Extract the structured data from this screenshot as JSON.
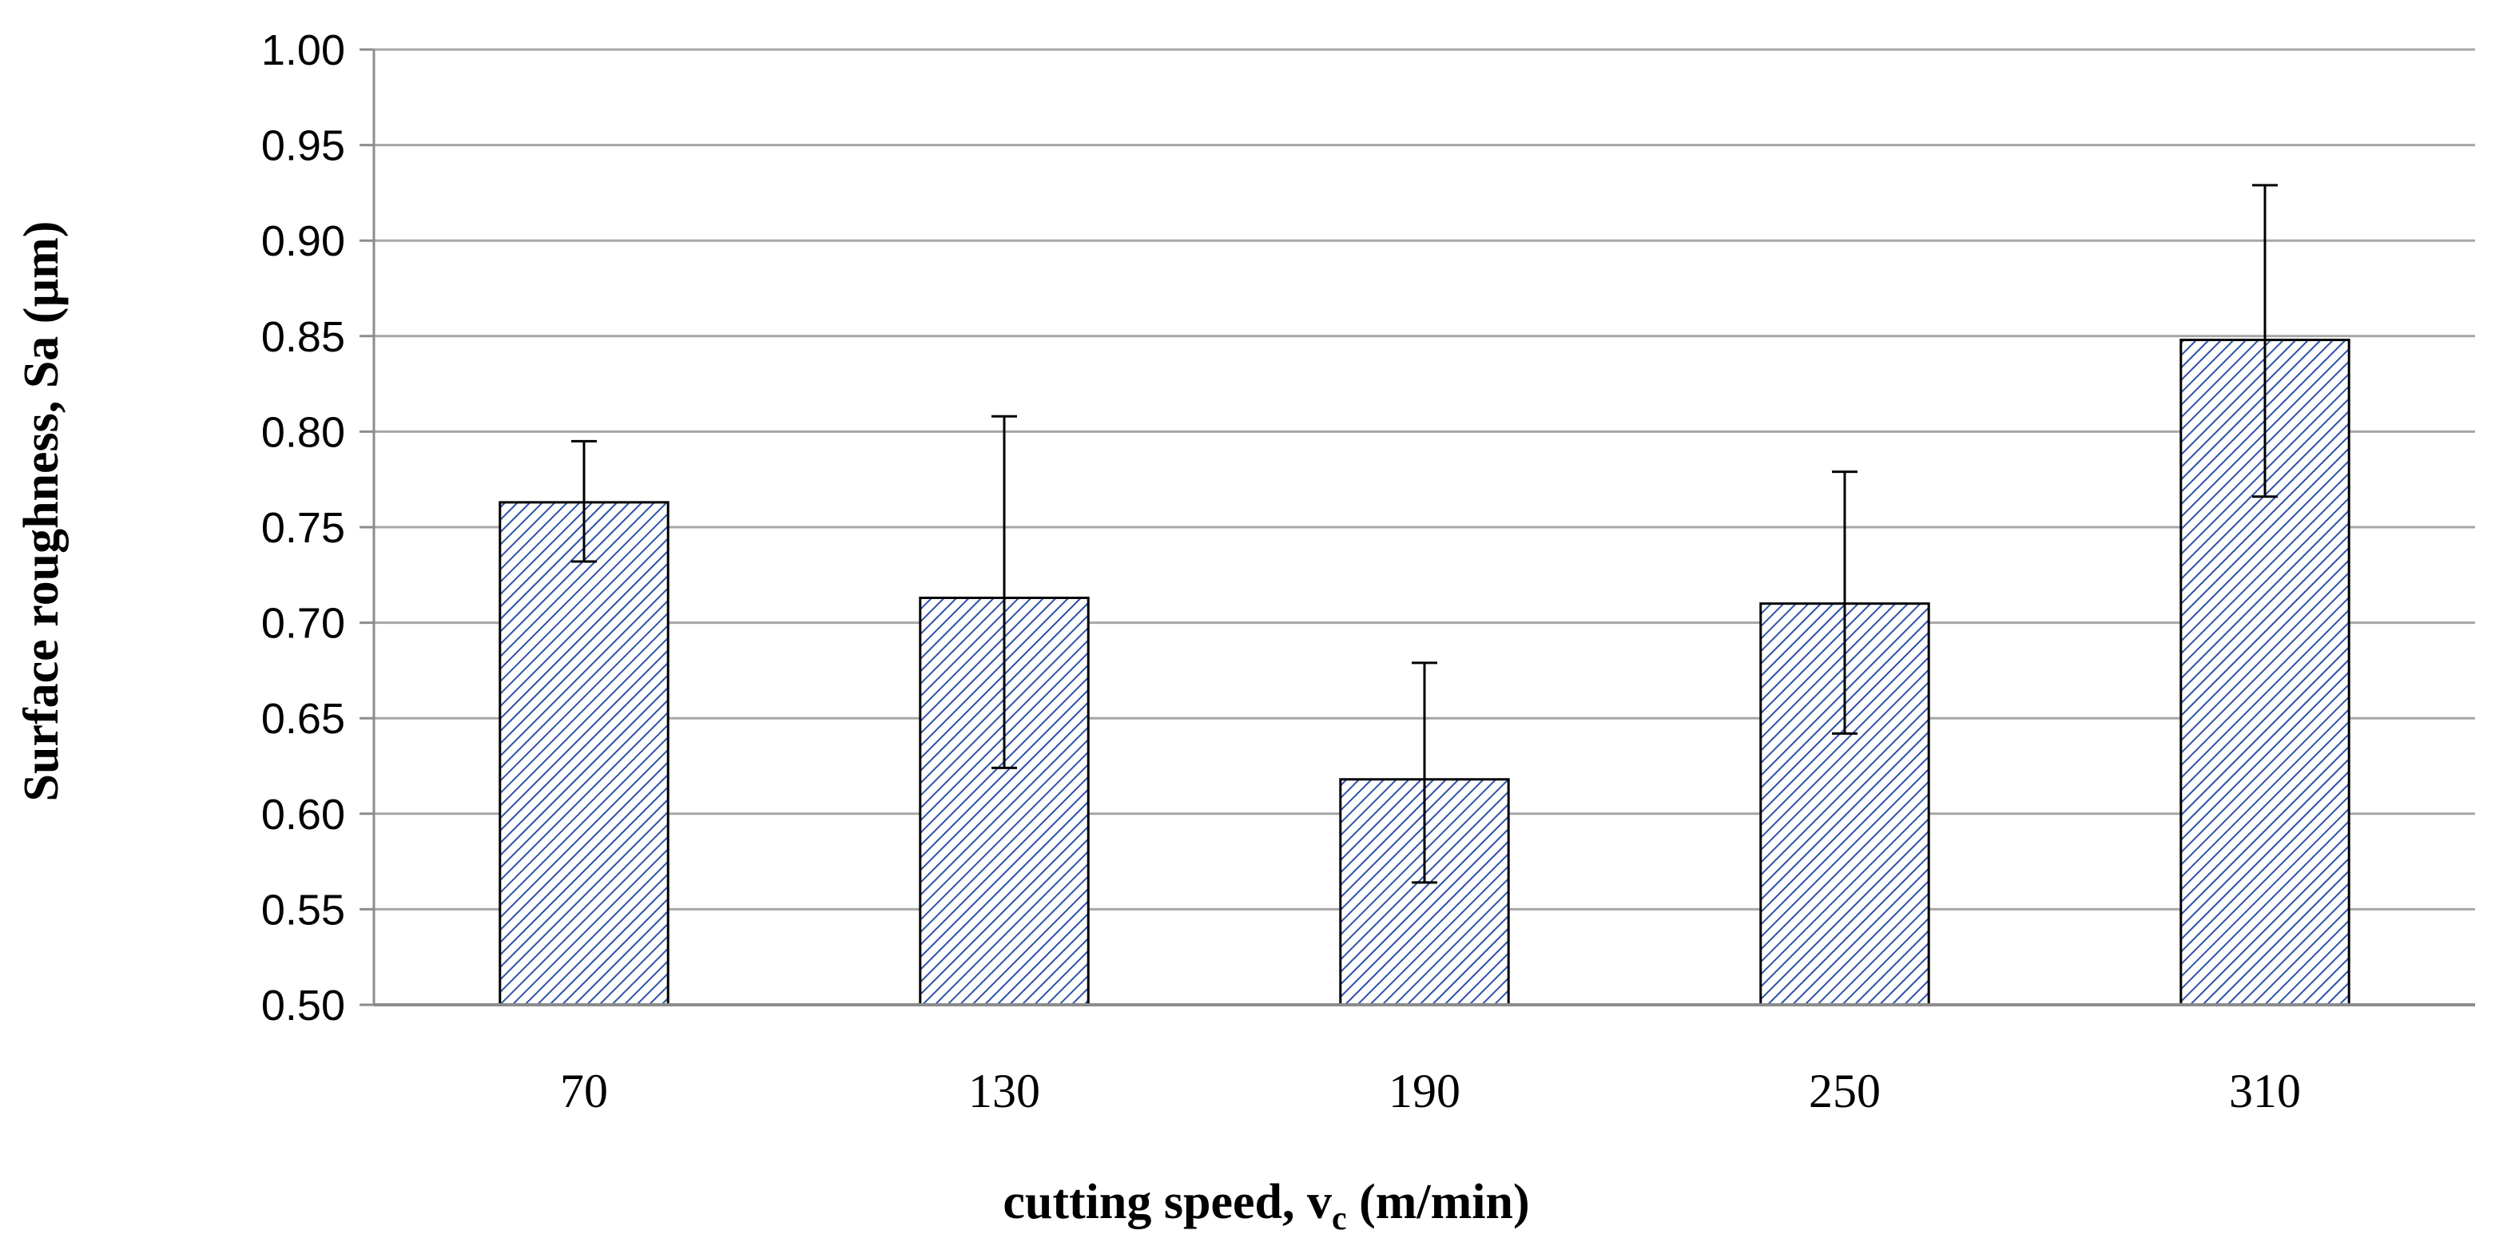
{
  "chart_data": {
    "type": "bar",
    "title": "",
    "categories": [
      "70",
      "130",
      "190",
      "250",
      "310"
    ],
    "series": [
      {
        "name": "Surface roughness, Sa",
        "values": [
          0.763,
          0.713,
          0.618,
          0.71,
          0.848
        ],
        "error_low": [
          0.732,
          0.624,
          0.564,
          0.642,
          0.766
        ],
        "error_high": [
          0.795,
          0.808,
          0.679,
          0.779,
          0.929
        ]
      }
    ],
    "xlabel": {
      "prefix": "cutting speed,  v",
      "subscript": "c",
      "suffix": " (m/min)"
    },
    "ylabel": "Surface roughness, Sa (µm)",
    "ylim": [
      0.5,
      1.0
    ],
    "yticks": [
      "0.50",
      "0.55",
      "0.60",
      "0.65",
      "0.70",
      "0.75",
      "0.80",
      "0.85",
      "0.90",
      "0.95",
      "1.00"
    ],
    "grid": true,
    "colors": {
      "bar_hatch": "#2f52a8",
      "bar_fill": "#ffffff",
      "bar_edge": "#000000",
      "grid": "#a6a6a6",
      "axis": "#8c8c8c",
      "error_bar": "#000000"
    }
  }
}
